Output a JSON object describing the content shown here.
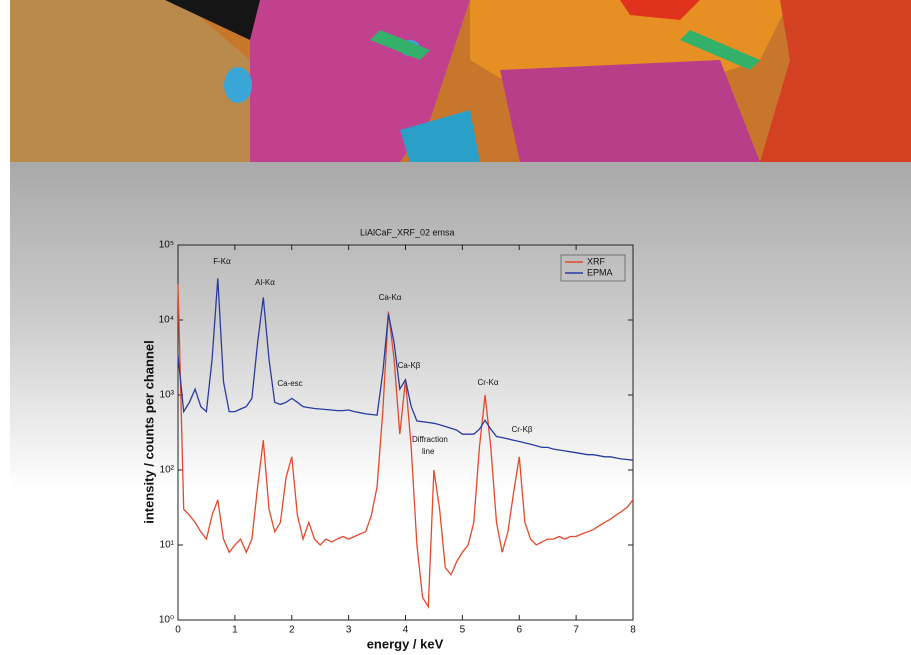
{
  "chart_data": {
    "type": "line",
    "title": "LiAlCaF_XRF_02 emsa",
    "x_label": "energy / keV",
    "y_label": "intensity / counts per channel",
    "log_y": true,
    "legend": "upper right",
    "x": [
      0,
      0.1,
      0.2,
      0.3,
      0.4,
      0.5,
      0.6,
      0.7,
      0.8,
      0.9,
      1,
      1.1,
      1.2,
      1.3,
      1.4,
      1.5,
      1.6,
      1.7,
      1.8,
      1.9,
      2,
      2.1,
      2.2,
      2.3,
      2.4,
      2.5,
      2.6,
      2.7,
      2.8,
      2.9,
      3,
      3.1,
      3.2,
      3.3,
      3.4,
      3.5,
      3.6,
      3.7,
      3.8,
      3.9,
      4,
      4.1,
      4.2,
      4.3,
      4.4,
      4.5,
      4.6,
      4.7,
      4.8,
      4.9,
      5,
      5.1,
      5.2,
      5.3,
      5.4,
      5.5,
      5.6,
      5.7,
      5.8,
      5.9,
      6,
      6.1,
      6.2,
      6.3,
      6.4,
      6.5,
      6.6,
      6.7,
      6.8,
      6.9,
      7,
      7.1,
      7.2,
      7.3,
      7.4,
      7.5,
      7.6,
      7.7,
      7.8,
      7.9,
      8
    ],
    "series": [
      {
        "name": "XRF",
        "color": "#e24a2a",
        "values": [
          30000,
          30,
          25,
          20,
          15,
          12,
          25,
          40,
          12,
          8,
          10,
          12,
          8,
          12,
          60,
          250,
          30,
          15,
          20,
          80,
          150,
          25,
          12,
          20,
          12,
          10,
          12,
          11,
          12,
          13,
          12,
          13,
          14,
          15,
          25,
          60,
          600,
          13000,
          3000,
          300,
          1600,
          200,
          10,
          2,
          1.5,
          100,
          30,
          5,
          4,
          6,
          8,
          10,
          20,
          200,
          1000,
          200,
          20,
          8,
          15,
          50,
          150,
          20,
          12,
          10,
          11,
          12,
          12,
          13,
          12,
          13,
          13,
          14,
          15,
          16,
          18,
          20,
          22,
          25,
          28,
          32,
          40
        ]
      },
      {
        "name": "EPMA",
        "color": "#2c3c9e",
        "values": [
          3400,
          600,
          800,
          1200,
          700,
          600,
          3000,
          36000,
          1500,
          600,
          600,
          650,
          700,
          900,
          5000,
          20000,
          3000,
          800,
          750,
          800,
          900,
          800,
          700,
          680,
          660,
          650,
          640,
          630,
          620,
          620,
          630,
          600,
          580,
          560,
          550,
          540,
          2000,
          12000,
          5000,
          1200,
          1600,
          700,
          450,
          440,
          430,
          420,
          400,
          380,
          360,
          340,
          300,
          300,
          300,
          350,
          460,
          350,
          280,
          270,
          260,
          250,
          240,
          230,
          220,
          210,
          200,
          200,
          190,
          185,
          180,
          175,
          170,
          165,
          160,
          160,
          155,
          150,
          150,
          145,
          140,
          138,
          135
        ]
      }
    ],
    "annotations": [
      "F-Kα",
      "Al-Kα",
      "Ca-esc",
      "Ca-Kα",
      "Ca-Kβ",
      "Diffraction line",
      "Cr-Kα",
      "Cr-Kβ"
    ],
    "xlim": [
      0,
      8
    ],
    "xticks": [
      0,
      1,
      2,
      3,
      4,
      5,
      6,
      7,
      8
    ],
    "ylim": [
      1,
      100000
    ],
    "yticks": [
      {
        "value": 1,
        "label": "10⁰"
      },
      {
        "value": 10,
        "label": "10¹"
      },
      {
        "value": 100,
        "label": "10²"
      },
      {
        "value": 1000,
        "label": "10³"
      },
      {
        "value": 10000,
        "label": "10⁴"
      },
      {
        "value": 100000,
        "label": "10⁵"
      }
    ]
  }
}
